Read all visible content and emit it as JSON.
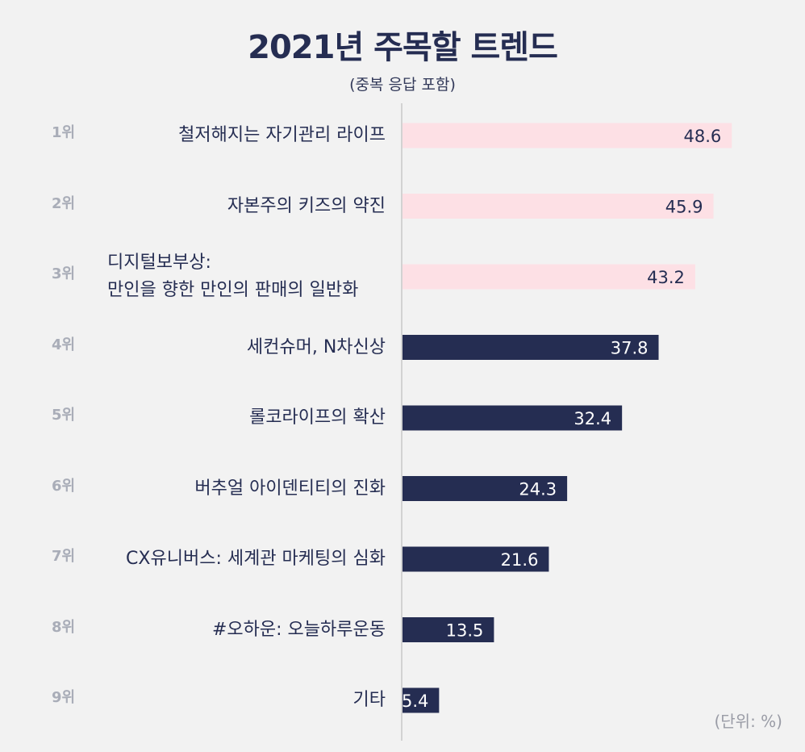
{
  "header": {
    "title": "2021년 주목할 트렌드",
    "subtitle": "(중복 응답 포함)",
    "unit": "(단위: %)"
  },
  "colors": {
    "highlight_bar": "#fde0e5",
    "bar": "#252d52",
    "highlight_text": "#252d52",
    "bar_text": "#ffffff",
    "rank_text": "#a9adb8",
    "axis": "#c8c8c8"
  },
  "chart_data": {
    "type": "bar",
    "orientation": "horizontal",
    "title": "2021년 주목할 트렌드",
    "subtitle": "(중복 응답 포함)",
    "unit": "(단위: %)",
    "xlim": [
      0,
      50
    ],
    "highlight_top": 3,
    "ranks": [
      "1위",
      "2위",
      "3위",
      "4위",
      "5위",
      "6위",
      "7위",
      "8위",
      "9위"
    ],
    "categories": [
      [
        "철저해지는 자기관리 라이프"
      ],
      [
        "자본주의 키즈의 약진"
      ],
      [
        "디지털보부상:",
        "만인을 향한 만인의 판매의 일반화"
      ],
      [
        "세컨슈머, N차신상"
      ],
      [
        "롤코라이프의 확산"
      ],
      [
        "버추얼 아이덴티티의 진화"
      ],
      [
        "CX유니버스: 세계관 마케팅의 심화"
      ],
      [
        "#오하운: 오늘하루운동"
      ],
      [
        "기타"
      ]
    ],
    "values": [
      48.6,
      45.9,
      43.2,
      37.8,
      32.4,
      24.3,
      21.6,
      13.5,
      5.4
    ]
  }
}
